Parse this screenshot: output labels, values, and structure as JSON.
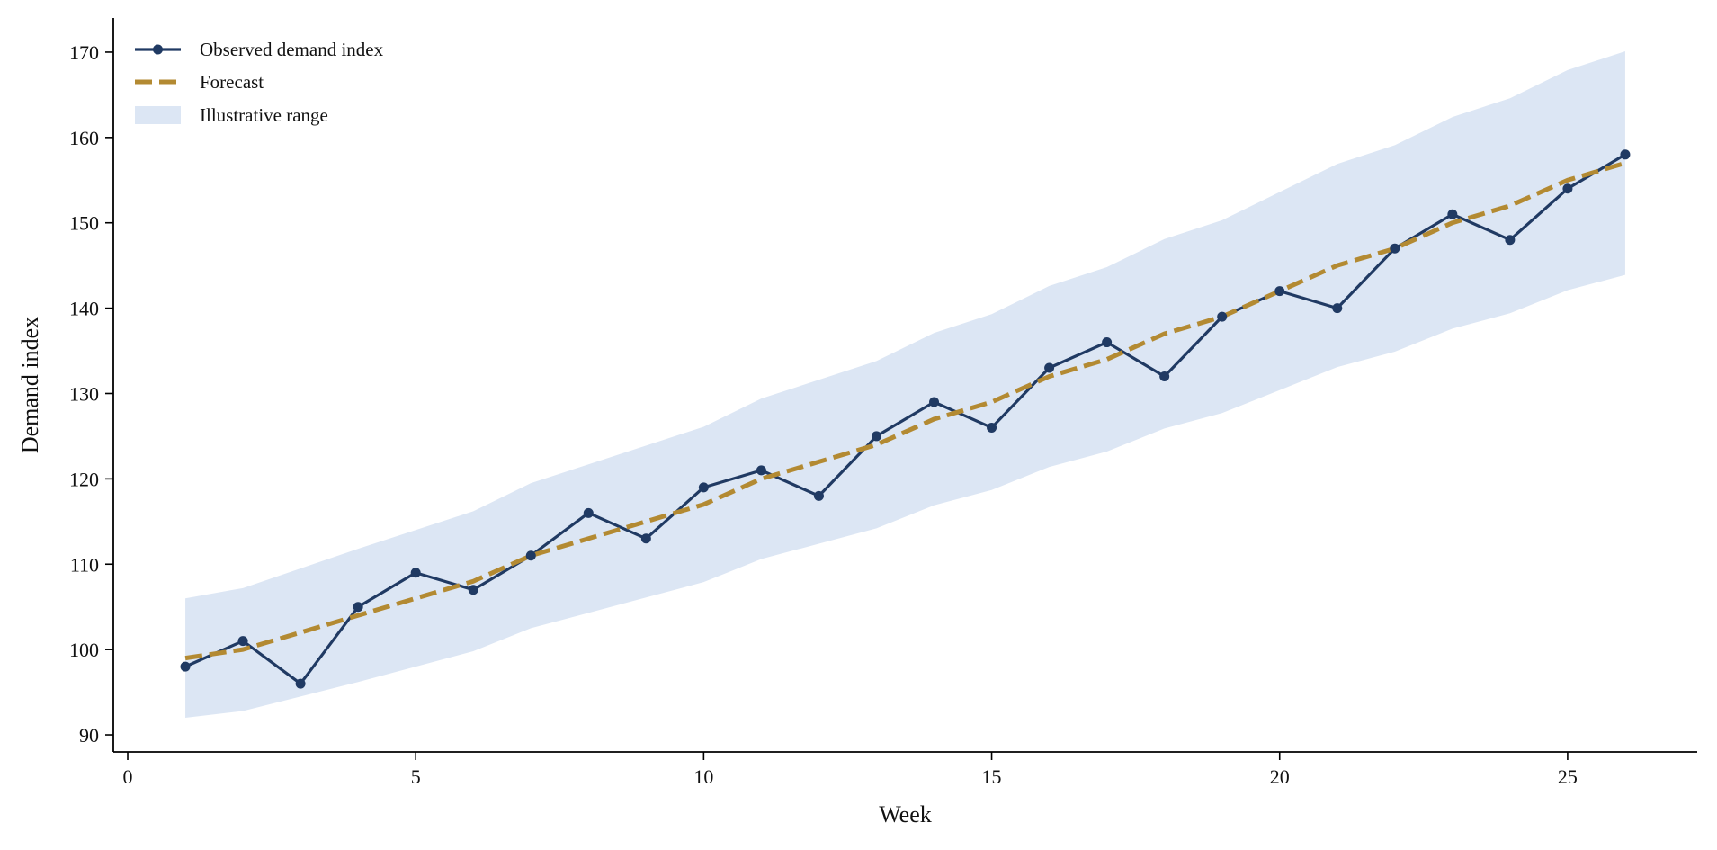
{
  "chart_data": {
    "type": "line",
    "xlabel": "Week",
    "ylabel": "Demand index",
    "xlim": [
      -0.25,
      27.25
    ],
    "ylim": [
      88,
      174
    ],
    "x_ticks": [
      0,
      5,
      10,
      15,
      20,
      25
    ],
    "y_ticks": [
      90,
      100,
      110,
      120,
      130,
      140,
      150,
      160,
      170
    ],
    "grid": false,
    "legend_position": "top-left",
    "x": [
      1,
      2,
      3,
      4,
      5,
      6,
      7,
      8,
      9,
      10,
      11,
      12,
      13,
      14,
      15,
      16,
      17,
      18,
      19,
      20,
      21,
      22,
      23,
      24,
      25,
      26
    ],
    "series": [
      {
        "name": "Observed demand index",
        "style": "line-markers",
        "color": "#203a63",
        "values": [
          98,
          101,
          96,
          105,
          109,
          107,
          111,
          116,
          113,
          119,
          121,
          118,
          125,
          129,
          126,
          133,
          136,
          132,
          139,
          142,
          140,
          147,
          151,
          148,
          154,
          158
        ]
      },
      {
        "name": "Forecast",
        "style": "dashed",
        "color": "#b38a32",
        "values": [
          99,
          100,
          102,
          104,
          106,
          108,
          111,
          113,
          115,
          117,
          120,
          122,
          124,
          127,
          129,
          132,
          134,
          137,
          139,
          142,
          145,
          147,
          150,
          152,
          155,
          157
        ]
      }
    ],
    "band": {
      "name": "Illustrative range",
      "color": "#dce6f4",
      "lower": [
        92,
        92.8,
        94.5,
        96.2,
        98,
        99.8,
        102.5,
        104.3,
        106.1,
        107.9,
        110.6,
        112.4,
        114.2,
        116.9,
        118.7,
        121.4,
        123.2,
        125.9,
        127.7,
        130.4,
        133.1,
        134.9,
        137.6,
        139.4,
        142.1,
        143.9
      ],
      "upper": [
        106,
        107.2,
        109.5,
        111.8,
        114,
        116.2,
        119.5,
        121.7,
        123.9,
        126.1,
        129.4,
        131.6,
        133.8,
        137.1,
        139.3,
        142.6,
        144.8,
        148.1,
        150.3,
        153.6,
        156.9,
        159.1,
        162.4,
        164.6,
        167.9,
        170.1
      ]
    }
  }
}
